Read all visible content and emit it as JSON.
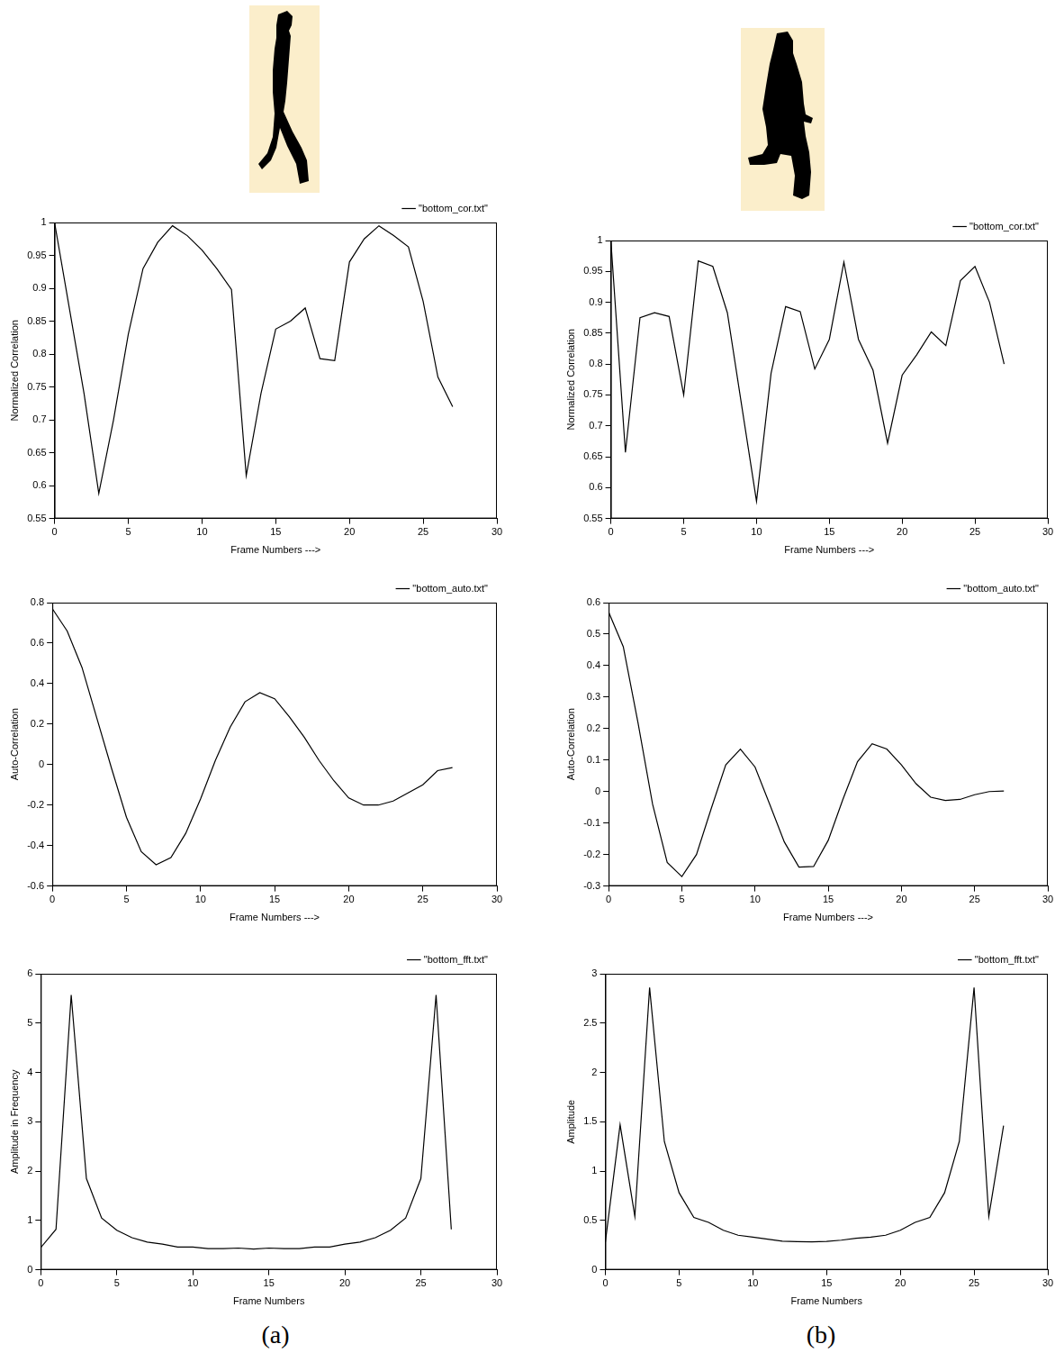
{
  "chart_data": [
    {
      "type": "line",
      "x_label": "Frame Numbers --->",
      "y_label": "Normalized Correlation",
      "x": [
        0,
        1,
        2,
        3,
        4,
        5,
        6,
        7,
        8,
        9,
        10,
        11,
        12,
        13,
        14,
        15,
        16,
        17,
        18,
        19,
        20,
        21,
        22,
        23,
        24,
        25,
        26,
        27
      ],
      "series": [
        {
          "name": "\"bottom_cor.txt\"",
          "color": "#000000",
          "marker": "none",
          "line_style": "solid",
          "values": [
            1,
            0.87,
            0.74,
            0.588,
            0.7,
            0.83,
            0.93,
            0.97,
            0.995,
            0.98,
            0.958,
            0.93,
            0.898,
            0.615,
            0.74,
            0.838,
            0.85,
            0.87,
            0.793,
            0.79,
            0.94,
            0.975,
            0.995,
            0.98,
            0.963,
            0.88,
            0.765,
            0.72
          ]
        }
      ],
      "xlim": [
        0,
        30
      ],
      "xticks": [
        0,
        5,
        10,
        15,
        20,
        25,
        30
      ],
      "ylim": [
        0.55,
        1
      ],
      "yticks": [
        0.55,
        0.6,
        0.65,
        0.7,
        0.75,
        0.8,
        0.85,
        0.9,
        0.95,
        1
      ],
      "grid": false,
      "legend": "top right"
    },
    {
      "type": "line",
      "x_label": "Frame Numbers --->",
      "y_label": "Normalized Correlation",
      "x": [
        0,
        1,
        2,
        3,
        4,
        5,
        6,
        7,
        8,
        9,
        10,
        11,
        12,
        13,
        14,
        15,
        16,
        17,
        18,
        19,
        20,
        21,
        22,
        23,
        24,
        25,
        26,
        27
      ],
      "series": [
        {
          "name": "\"bottom_cor.txt\"",
          "color": "#000000",
          "marker": "none",
          "line_style": "solid",
          "values": [
            1,
            0.657,
            0.875,
            0.883,
            0.877,
            0.75,
            0.967,
            0.958,
            0.883,
            0.73,
            0.578,
            0.785,
            0.893,
            0.885,
            0.792,
            0.84,
            0.965,
            0.84,
            0.79,
            0.672,
            0.782,
            0.815,
            0.852,
            0.83,
            0.935,
            0.958,
            0.9,
            0.8
          ]
        }
      ],
      "xlim": [
        0,
        30
      ],
      "xticks": [
        0,
        5,
        10,
        15,
        20,
        25,
        30
      ],
      "ylim": [
        0.55,
        1
      ],
      "yticks": [
        0.55,
        0.6,
        0.65,
        0.7,
        0.75,
        0.8,
        0.85,
        0.9,
        0.95,
        1
      ],
      "grid": false,
      "legend": "top right"
    },
    {
      "type": "line",
      "x_label": "Frame Numbers --->",
      "y_label": "Auto-Correlation",
      "x": [
        0,
        1,
        2,
        3,
        4,
        5,
        6,
        7,
        8,
        9,
        10,
        11,
        12,
        13,
        14,
        15,
        16,
        17,
        18,
        19,
        20,
        21,
        22,
        23,
        24,
        25,
        26,
        27
      ],
      "series": [
        {
          "name": "\"bottom_auto.txt\"",
          "color": "#000000",
          "marker": "none",
          "line_style": "solid",
          "values": [
            0.77,
            0.66,
            0.48,
            0.23,
            -0.02,
            -0.26,
            -0.43,
            -0.495,
            -0.46,
            -0.34,
            -0.17,
            0.02,
            0.185,
            0.31,
            0.355,
            0.325,
            0.235,
            0.135,
            0.02,
            -0.08,
            -0.165,
            -0.2,
            -0.2,
            -0.18,
            -0.14,
            -0.1,
            -0.03,
            -0.015
          ]
        }
      ],
      "xlim": [
        0,
        30
      ],
      "xticks": [
        0,
        5,
        10,
        15,
        20,
        25,
        30
      ],
      "ylim": [
        -0.6,
        0.8
      ],
      "yticks": [
        -0.6,
        -0.4,
        -0.2,
        0,
        0.2,
        0.4,
        0.6,
        0.8
      ],
      "grid": false,
      "legend": "top right"
    },
    {
      "type": "line",
      "x_label": "Frame Numbers --->",
      "y_label": "Auto-Correlation",
      "x": [
        0,
        1,
        2,
        3,
        4,
        5,
        6,
        7,
        8,
        9,
        10,
        11,
        12,
        13,
        14,
        15,
        16,
        17,
        18,
        19,
        20,
        21,
        22,
        23,
        24,
        25,
        26,
        27
      ],
      "series": [
        {
          "name": "\"bottom_auto.txt\"",
          "color": "#000000",
          "marker": "none",
          "line_style": "solid",
          "values": [
            0.57,
            0.46,
            0.22,
            -0.04,
            -0.225,
            -0.27,
            -0.2,
            -0.055,
            0.085,
            0.135,
            0.078,
            -0.04,
            -0.16,
            -0.24,
            -0.238,
            -0.155,
            -0.025,
            0.095,
            0.152,
            0.135,
            0.085,
            0.025,
            -0.018,
            -0.028,
            -0.025,
            -0.01,
            0,
            0.002
          ]
        }
      ],
      "xlim": [
        0,
        30
      ],
      "xticks": [
        0,
        5,
        10,
        15,
        20,
        25,
        30
      ],
      "ylim": [
        -0.3,
        0.6
      ],
      "yticks": [
        -0.3,
        -0.2,
        -0.1,
        0,
        0.1,
        0.2,
        0.3,
        0.4,
        0.5,
        0.6
      ],
      "grid": false,
      "legend": "top right"
    },
    {
      "type": "line",
      "x_label": "Frame Numbers",
      "y_label": "Amplitude in Frequency",
      "x": [
        0,
        1,
        2,
        3,
        4,
        5,
        6,
        7,
        8,
        9,
        10,
        11,
        12,
        13,
        14,
        15,
        16,
        17,
        18,
        19,
        20,
        21,
        22,
        23,
        24,
        25,
        26,
        27
      ],
      "series": [
        {
          "name": "\"bottom_fft.txt\"",
          "color": "#000000",
          "marker": "none",
          "line_style": "solid",
          "values": [
            0.45,
            0.82,
            5.57,
            1.85,
            1.05,
            0.8,
            0.65,
            0.56,
            0.52,
            0.46,
            0.46,
            0.43,
            0.43,
            0.44,
            0.42,
            0.44,
            0.43,
            0.43,
            0.46,
            0.46,
            0.52,
            0.56,
            0.65,
            0.8,
            1.05,
            1.85,
            5.57,
            0.82
          ]
        }
      ],
      "xlim": [
        0,
        30
      ],
      "xticks": [
        0,
        5,
        10,
        15,
        20,
        25,
        30
      ],
      "ylim": [
        0,
        6
      ],
      "yticks": [
        0,
        1,
        2,
        3,
        4,
        5,
        6
      ],
      "grid": false,
      "legend": "top right"
    },
    {
      "type": "line",
      "x_label": "Frame Numbers",
      "y_label": "Amplitude",
      "x": [
        0,
        1,
        2,
        3,
        4,
        5,
        6,
        7,
        8,
        9,
        10,
        11,
        12,
        13,
        14,
        15,
        16,
        17,
        18,
        19,
        20,
        21,
        22,
        23,
        24,
        25,
        26,
        27
      ],
      "series": [
        {
          "name": "\"bottom_fft.txt\"",
          "color": "#000000",
          "marker": "none",
          "line_style": "solid",
          "values": [
            0.28,
            1.47,
            0.54,
            2.86,
            1.3,
            0.78,
            0.53,
            0.48,
            0.4,
            0.35,
            0.33,
            0.31,
            0.29,
            0.285,
            0.283,
            0.287,
            0.3,
            0.32,
            0.33,
            0.35,
            0.4,
            0.48,
            0.53,
            0.78,
            1.3,
            2.86,
            0.54,
            1.46
          ]
        }
      ],
      "xlim": [
        0,
        30
      ],
      "xticks": [
        0,
        5,
        10,
        15,
        20,
        25,
        30
      ],
      "ylim": [
        0,
        3
      ],
      "yticks": [
        0,
        0.5,
        1,
        1.5,
        2,
        2.5,
        3
      ],
      "grid": false,
      "legend": "top right"
    }
  ],
  "panel_labels": [
    "(a)",
    "(b)"
  ]
}
